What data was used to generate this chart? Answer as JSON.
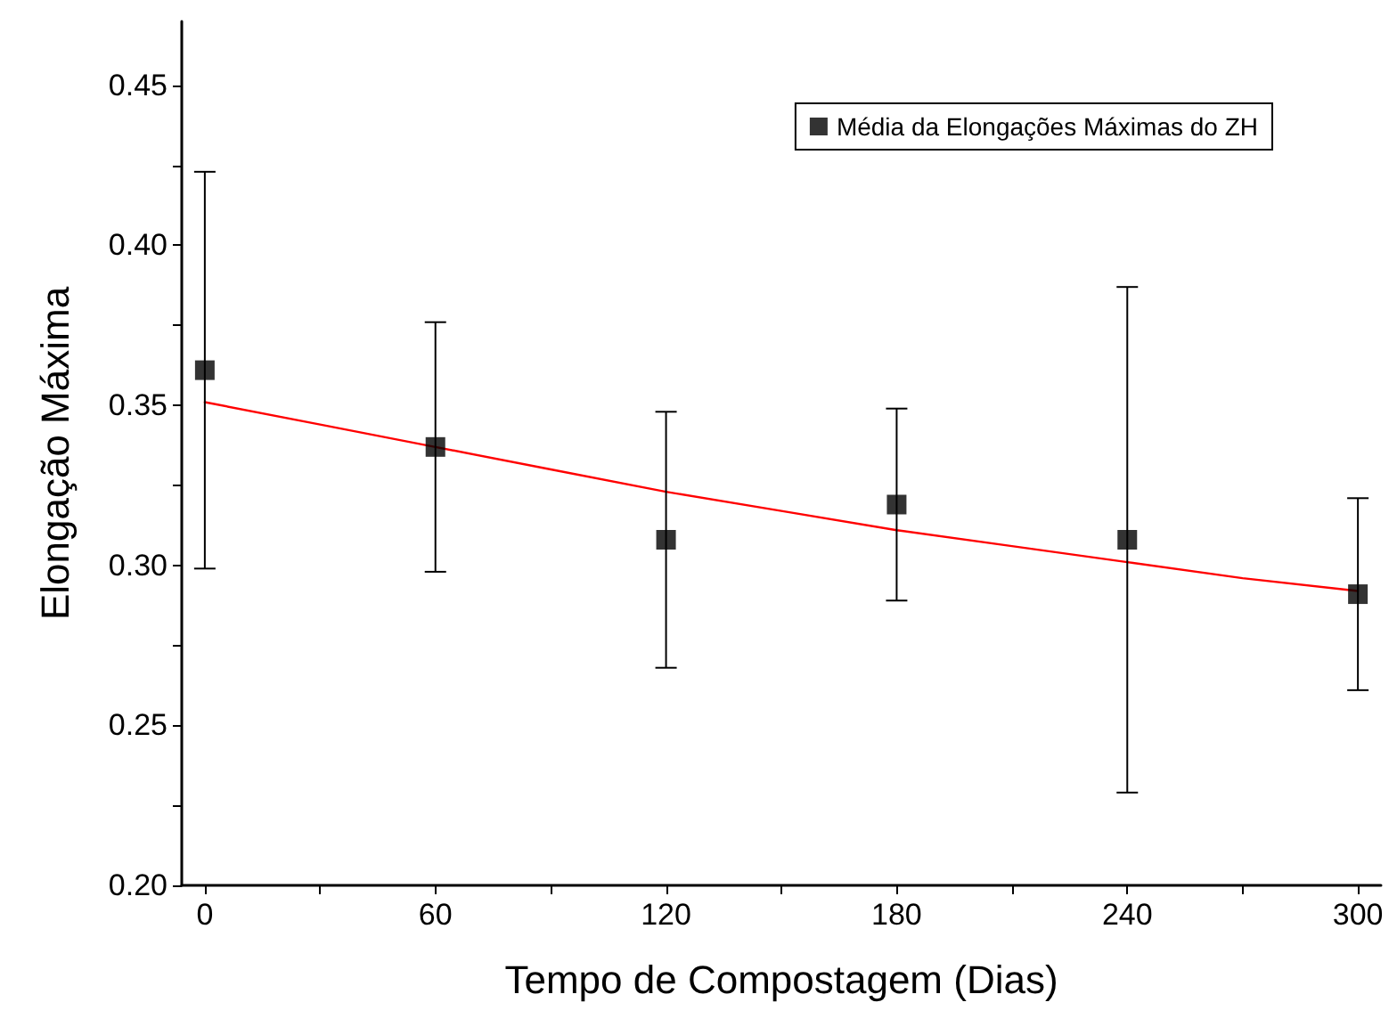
{
  "chart_data": {
    "type": "scatter",
    "xlabel": "Tempo de Compostagem (Dias)",
    "ylabel": "Elongação Máxima",
    "xlim": [
      -6,
      306
    ],
    "ylim": [
      0.2,
      0.47
    ],
    "xticks": [
      0,
      {
        "value": 30,
        "label": null
      },
      60,
      {
        "value": 90,
        "label": null
      },
      120,
      {
        "value": 150,
        "label": null
      },
      180,
      {
        "value": 210,
        "label": null
      },
      240,
      {
        "value": 270,
        "label": null
      },
      300
    ],
    "yticks": [
      {
        "value": 0.2,
        "label": "0.20"
      },
      {
        "value": 0.225,
        "label": null
      },
      {
        "value": 0.25,
        "label": "0.25"
      },
      {
        "value": 0.275,
        "label": null
      },
      {
        "value": 0.3,
        "label": "0.30"
      },
      {
        "value": 0.325,
        "label": null
      },
      {
        "value": 0.35,
        "label": "0.35"
      },
      {
        "value": 0.375,
        "label": null
      },
      {
        "value": 0.4,
        "label": "0.40"
      },
      {
        "value": 0.425,
        "label": null
      },
      {
        "value": 0.45,
        "label": "0.45"
      }
    ],
    "grid": false,
    "legend": "top right",
    "series": [
      {
        "name": "Média da Elongações Máximas do ZH",
        "color": "#000000",
        "marker": "square",
        "x": [
          0,
          60,
          120,
          180,
          240,
          300
        ],
        "values": [
          0.361,
          0.337,
          0.308,
          0.319,
          0.308,
          0.291
        ],
        "errors": [
          0.062,
          0.039,
          0.04,
          0.03,
          0.079,
          0.03
        ]
      },
      {
        "type": "line",
        "color": "#ff0000",
        "marker": "none",
        "line_style": "solid",
        "x": [
          0,
          30,
          60,
          90,
          120,
          150,
          180,
          210,
          240,
          270,
          300
        ],
        "values": [
          0.351,
          0.344,
          0.337,
          0.33,
          0.323,
          0.317,
          0.311,
          0.306,
          0.301,
          0.296,
          0.292
        ]
      }
    ]
  }
}
